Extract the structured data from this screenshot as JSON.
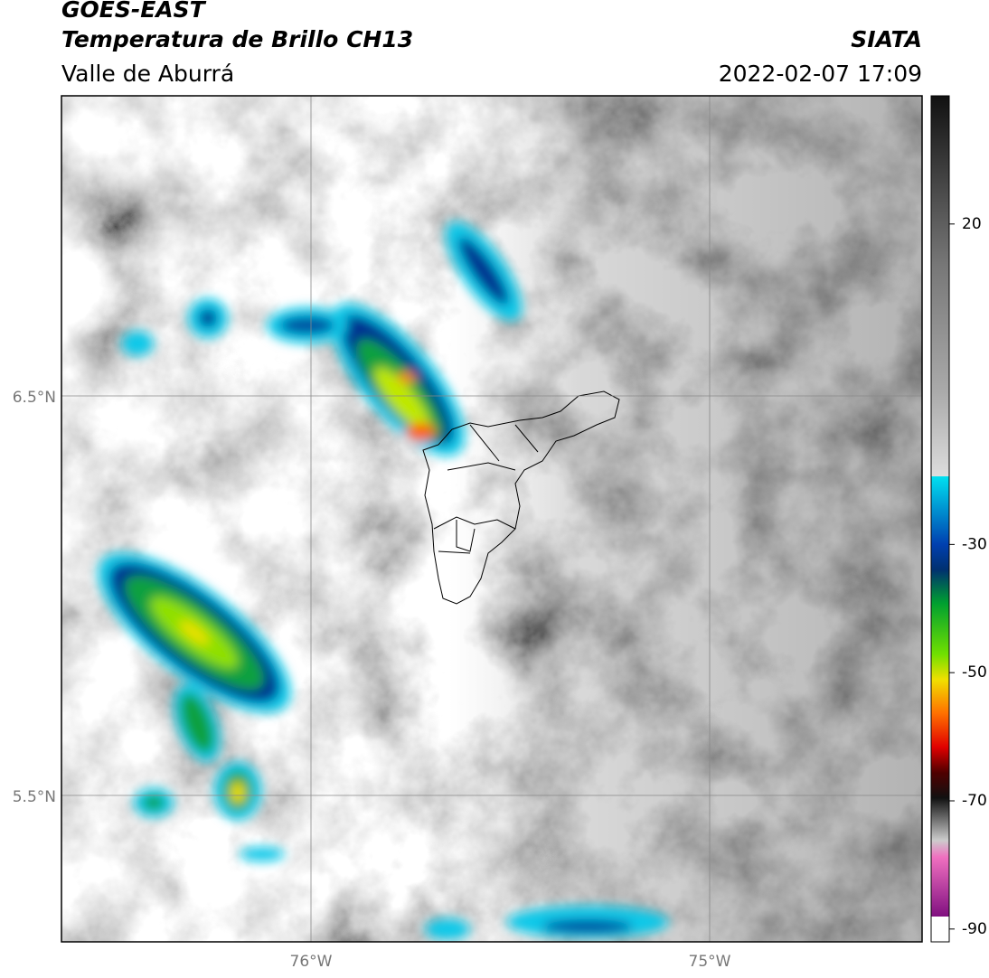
{
  "header": {
    "title": "GOES-EAST",
    "subtitle": "Temperatura de Brillo CH13",
    "region": "Valle de Aburrá",
    "source": "SIATA",
    "datetime": "2022-02-07 17:09"
  },
  "axes": {
    "lat_labels": [
      "6.5°N",
      "5.5°N"
    ],
    "lon_labels": [
      "76°W",
      "75°W"
    ]
  },
  "colorbar": {
    "range": [
      -92,
      40
    ],
    "ticks": [
      20,
      -30,
      -50,
      -70,
      -90
    ]
  }
}
